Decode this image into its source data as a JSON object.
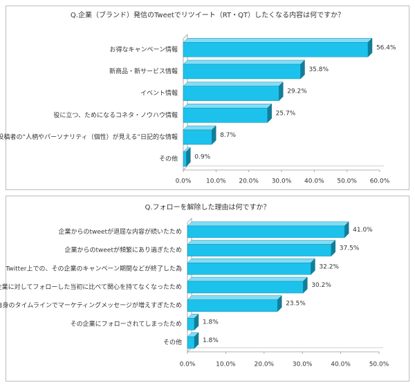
{
  "chart_data": [
    {
      "type": "bar3d",
      "title": "Q.企業（ブランド）発信のTweetでリツイート（RT・QT）したくなる内容は何ですか？",
      "categories": [
        "お得なキャンペーン情報",
        "新商品・新サービス情報",
        "イベント情報",
        "役に立つ、ためになるコネタ・ノウハウ情報",
        "投稿者の“人柄やパーソナリティ（個性）が見える”日記的な情報",
        "その他"
      ],
      "values": [
        56.4,
        35.8,
        29.2,
        25.7,
        8.7,
        0.9
      ],
      "value_labels": [
        "56.4%",
        "35.8%",
        "29.2%",
        "25.7%",
        "8.7%",
        "0.9%"
      ],
      "color": "#1cc2ec",
      "xlim": [
        0,
        60
      ],
      "xticks": [
        {
          "value": 0,
          "label": "0.0%"
        },
        {
          "value": 10,
          "label": "10.0%"
        },
        {
          "value": 20,
          "label": "20.0%"
        },
        {
          "value": 30,
          "label": "30.0%"
        },
        {
          "value": 40,
          "label": "40.0%"
        },
        {
          "value": 50,
          "label": "50.0%"
        },
        {
          "value": 60,
          "label": "60.0%"
        }
      ]
    },
    {
      "type": "bar3d",
      "title": "Q.フォローを解除した理由は何ですか？",
      "categories": [
        "企業からのtweetが退屈な内容が続いたため",
        "企業からのtweetが頻繁にあり過ぎたため",
        "Twitter上での、その企業のキャンペーン期間などが終了した為",
        "企業に対してフォローした当初に比べて関心を持てなくなったため",
        "自身のタイムラインでマーケティングメッセージが増えすぎたため",
        "その企業にフォローされてしまったため",
        "その他"
      ],
      "values": [
        41.0,
        37.5,
        32.2,
        30.2,
        23.5,
        1.8,
        1.8
      ],
      "value_labels": [
        "41.0%",
        "37.5%",
        "32.2%",
        "30.2%",
        "23.5%",
        "1.8%",
        "1.8%"
      ],
      "color": "#1cc2ec",
      "xlim": [
        0,
        50
      ],
      "xticks": [
        {
          "value": 0,
          "label": "0.0%"
        },
        {
          "value": 10,
          "label": "10.0%"
        },
        {
          "value": 20,
          "label": "20.0%"
        },
        {
          "value": 30,
          "label": "30.0%"
        },
        {
          "value": 40,
          "label": "40.0%"
        },
        {
          "value": 50,
          "label": "50.0%"
        }
      ]
    }
  ]
}
